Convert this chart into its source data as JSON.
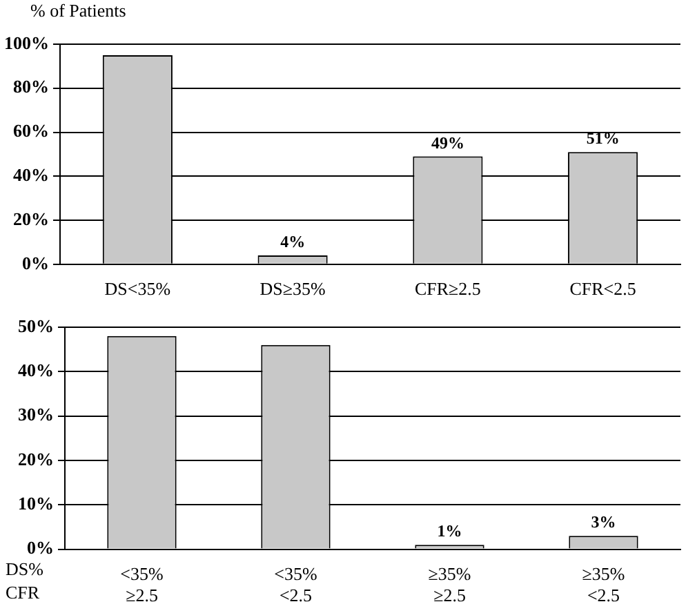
{
  "chart_data": [
    {
      "type": "bar",
      "ylabel": "% of Patients",
      "categories": [
        "DS<35%",
        "DS≥35%",
        "CFR≥2.5",
        "CFR<2.5"
      ],
      "values": [
        95,
        4,
        49,
        51
      ],
      "value_labels": [
        null,
        "4%",
        "49%",
        "51%"
      ],
      "color": "#c8c8c8",
      "ylim": [
        0,
        100
      ],
      "yticks": [
        {
          "value": 0,
          "label": "0%"
        },
        {
          "value": 20,
          "label": "20%"
        },
        {
          "value": 40,
          "label": "40%"
        },
        {
          "value": 60,
          "label": "60%"
        },
        {
          "value": 80,
          "label": "80%"
        },
        {
          "value": 100,
          "label": "100%"
        }
      ],
      "grid": "y",
      "legend": false
    },
    {
      "type": "bar",
      "categories": [
        "<35%\n≥2.5",
        "<35%\n<2.5",
        "≥35%\n≥2.5",
        "≥35%\n<2.5"
      ],
      "values": [
        48,
        46,
        1,
        3
      ],
      "value_labels": [
        null,
        null,
        "1%",
        "3%"
      ],
      "color": "#c8c8c8",
      "ylim": [
        0,
        50
      ],
      "yticks": [
        {
          "value": 0,
          "label": "0%"
        },
        {
          "value": 10,
          "label": "10%"
        },
        {
          "value": 20,
          "label": "20%"
        },
        {
          "value": 30,
          "label": "30%"
        },
        {
          "value": 40,
          "label": "40%"
        },
        {
          "value": 50,
          "label": "50%"
        }
      ],
      "grid": "y",
      "legend": false,
      "annotations": [
        "DS%",
        "CFR"
      ]
    }
  ]
}
